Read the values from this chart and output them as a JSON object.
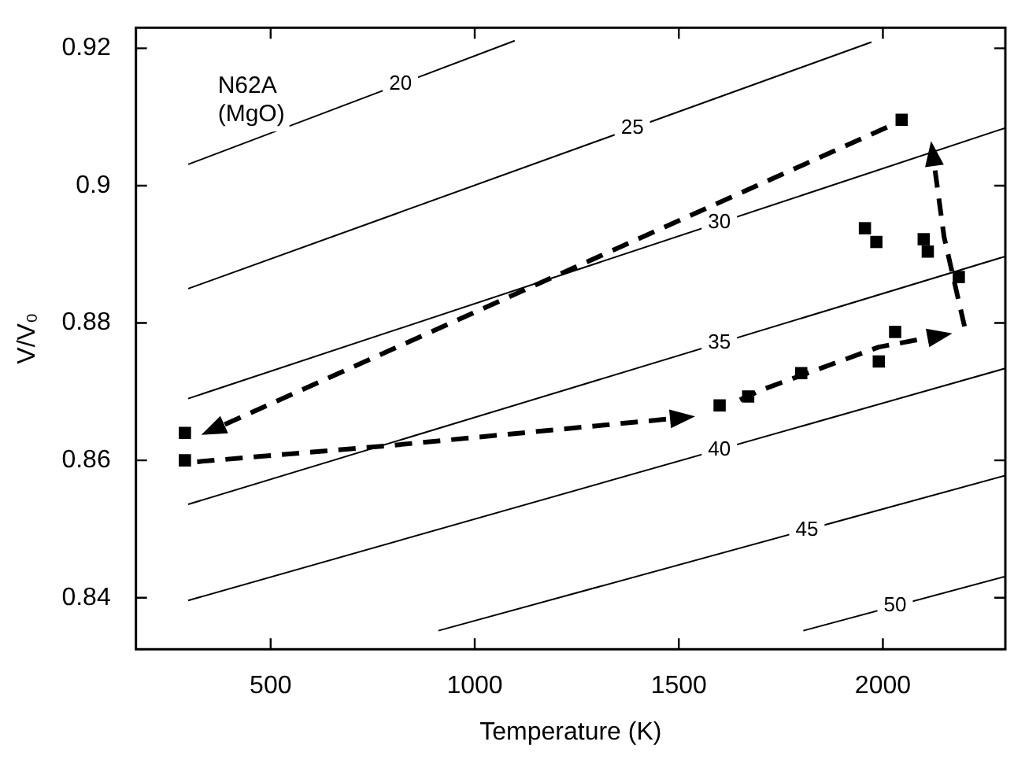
{
  "chart_data": {
    "type": "scatter",
    "xlabel": "Temperature (K)",
    "ylabel": "V/V₀",
    "annotations": [
      "N62A\n(MgO)"
    ],
    "xlim": [
      170,
      2300
    ],
    "ylim": [
      0.8325,
      0.923
    ],
    "xticks": [
      500,
      1000,
      1500,
      2000
    ],
    "yticks": [
      0.84,
      0.86,
      0.88,
      0.9,
      0.92
    ],
    "grid": false,
    "legend": false,
    "series": [
      {
        "type": "scatter",
        "color": "#000000",
        "marker": "square",
        "x": [
          290,
          290,
          1600,
          1670,
          1800,
          1990,
          2030,
          2186,
          1956,
          1984,
          2100,
          2110,
          2046
        ],
        "values": [
          0.864,
          0.86,
          0.868,
          0.8693,
          0.8727,
          0.8744,
          0.8787,
          0.8867,
          0.8938,
          0.8918,
          0.8922,
          0.8904,
          0.9096
        ]
      },
      {
        "type": "line",
        "name": "20",
        "color": "#000000",
        "marker": "none",
        "line_style": "solid",
        "x": [
          298,
          1098
        ],
        "values": [
          0.9031,
          0.9211
        ]
      },
      {
        "type": "line",
        "name": "25",
        "color": "#000000",
        "marker": "none",
        "line_style": "solid",
        "x": [
          298,
          1972
        ],
        "values": [
          0.885,
          0.9209
        ]
      },
      {
        "type": "line",
        "name": "30",
        "color": "#000000",
        "marker": "none",
        "line_style": "solid",
        "x": [
          298,
          2300
        ],
        "values": [
          0.869,
          0.9084
        ]
      },
      {
        "type": "line",
        "name": "35",
        "color": "#000000",
        "marker": "none",
        "line_style": "solid",
        "x": [
          298,
          2300
        ],
        "values": [
          0.8536,
          0.8897
        ]
      },
      {
        "type": "line",
        "name": "40",
        "color": "#000000",
        "marker": "none",
        "line_style": "solid",
        "x": [
          298,
          2300
        ],
        "values": [
          0.8396,
          0.8734
        ]
      },
      {
        "type": "line",
        "name": "45",
        "color": "#000000",
        "marker": "none",
        "line_style": "solid",
        "x": [
          911,
          2300
        ],
        "values": [
          0.8352,
          0.8578
        ]
      },
      {
        "type": "line",
        "name": "50",
        "color": "#000000",
        "marker": "none",
        "line_style": "solid",
        "x": [
          1805,
          2300
        ],
        "values": [
          0.8352,
          0.8431
        ]
      }
    ]
  }
}
